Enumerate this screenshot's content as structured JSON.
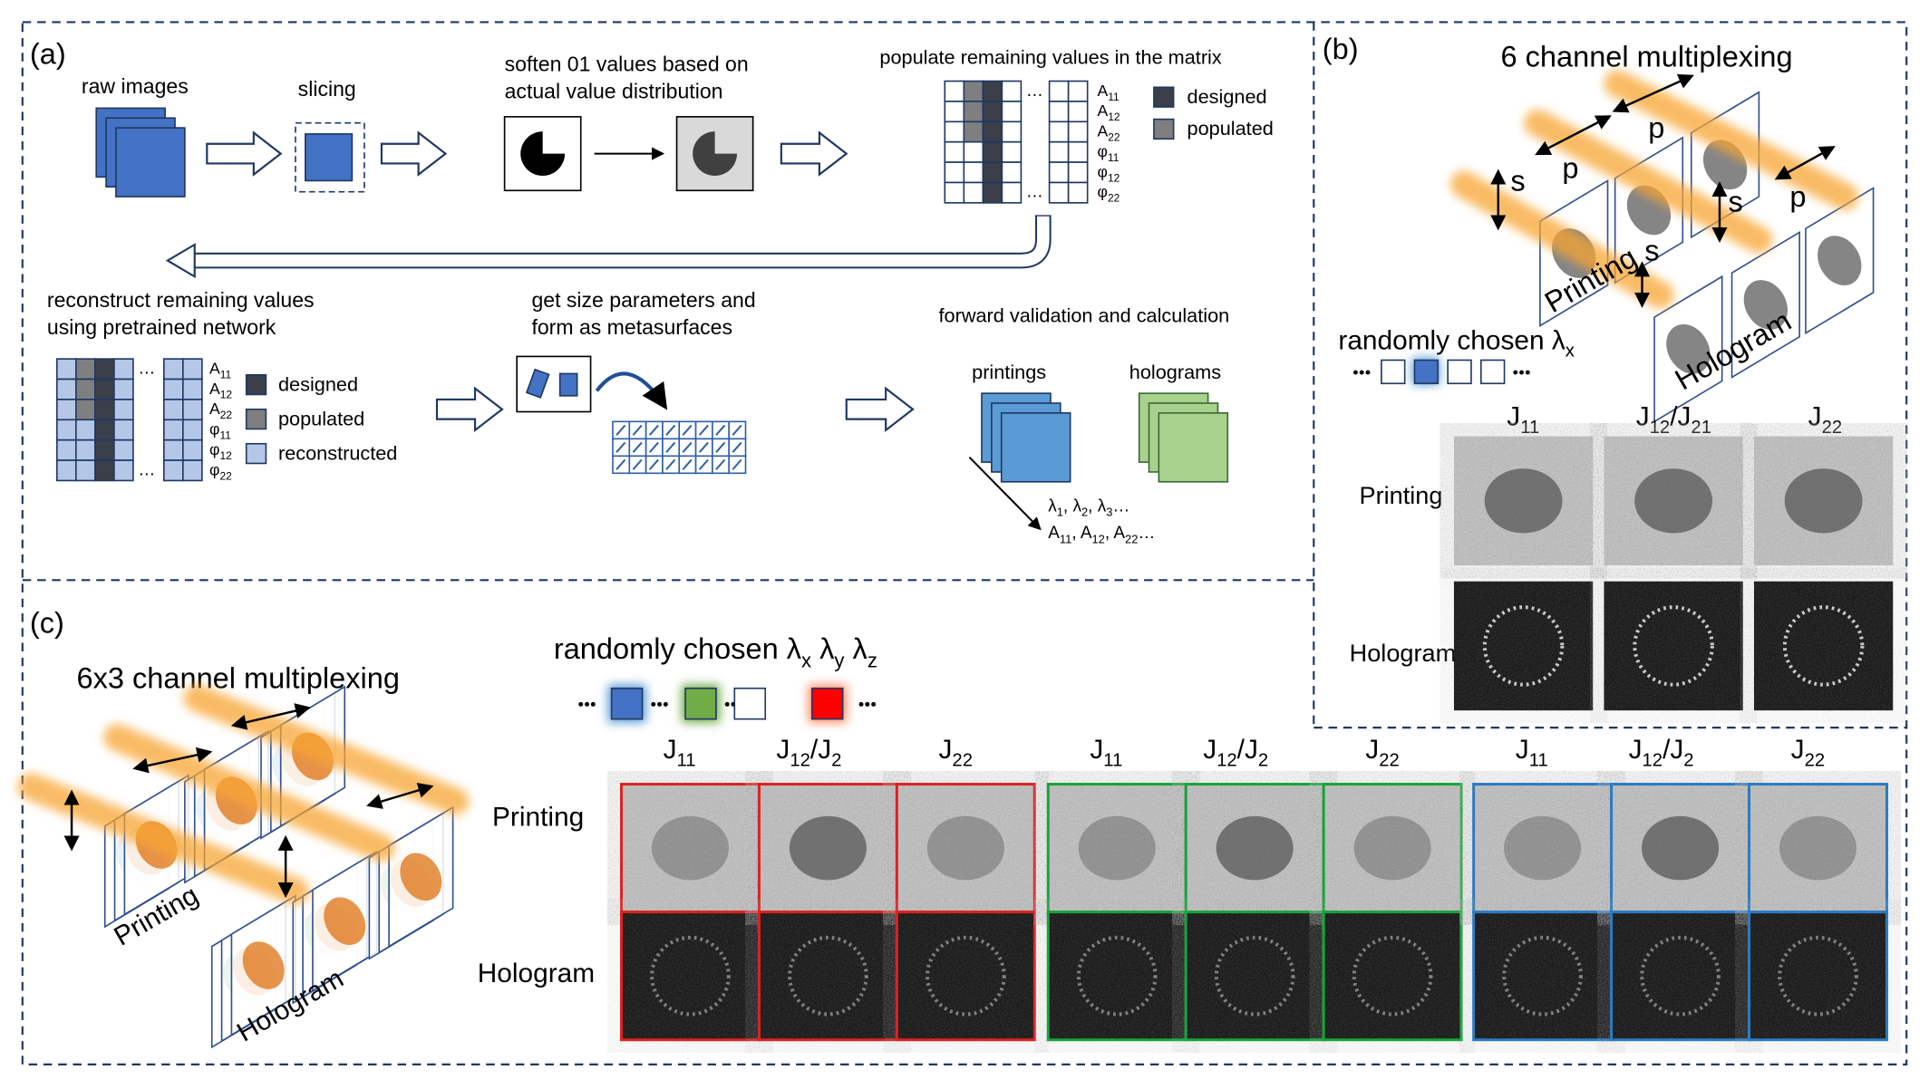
{
  "panel_a": {
    "label": "(a)",
    "raw_images": "raw images",
    "slicing": "slicing",
    "soften": [
      "soften 01 values based on",
      "actual value distribution"
    ],
    "populate": "populate remaining values in the matrix",
    "matrix_rows": [
      [
        "A",
        "11"
      ],
      [
        "A",
        "12"
      ],
      [
        "A",
        "22"
      ],
      [
        "φ",
        "11"
      ],
      [
        "φ",
        "12"
      ],
      [
        "φ",
        "22"
      ]
    ],
    "legend1": [
      "designed",
      "populated"
    ],
    "reconstruct": [
      "reconstruct remaining values",
      "using pretrained network"
    ],
    "legend2": [
      "designed",
      "populated",
      "reconstructed"
    ],
    "size_params": [
      "get size parameters and",
      "form as metasurfaces"
    ],
    "forward": "forward validation and calculation",
    "printings": "printings",
    "holograms": "holograms",
    "params": [
      [
        "λ",
        "1",
        ", λ",
        "2",
        ", λ",
        "3",
        "…"
      ],
      [
        "A",
        "11",
        ", A",
        "12",
        ", A",
        "22",
        "…"
      ]
    ]
  },
  "panel_b": {
    "label": "(b)",
    "title": "6 channel multiplexing",
    "arrows": [
      "s",
      "p",
      "p",
      "s",
      "p",
      "s"
    ],
    "printing": "Printing",
    "hologram": "Hologram",
    "chosen": [
      "randomly chosen λ",
      "x"
    ],
    "columns": [
      [
        "J",
        "11"
      ],
      [
        "J",
        "12",
        "/J",
        "21"
      ],
      [
        "J",
        "22"
      ]
    ],
    "rows": [
      "Printing",
      "Hologram"
    ]
  },
  "panel_c": {
    "label": "(c)",
    "title": "6x3 channel multiplexing",
    "printing": "Printing",
    "hologram": "Hologram",
    "chosen": [
      "randomly chosen λ",
      "x",
      " λ",
      "y",
      " λ",
      "z"
    ],
    "columns": [
      [
        "J",
        "11"
      ],
      [
        "J",
        "12",
        "/J",
        "2"
      ],
      [
        "J",
        "22"
      ]
    ],
    "rows": [
      "Printing",
      "Hologram"
    ]
  }
}
